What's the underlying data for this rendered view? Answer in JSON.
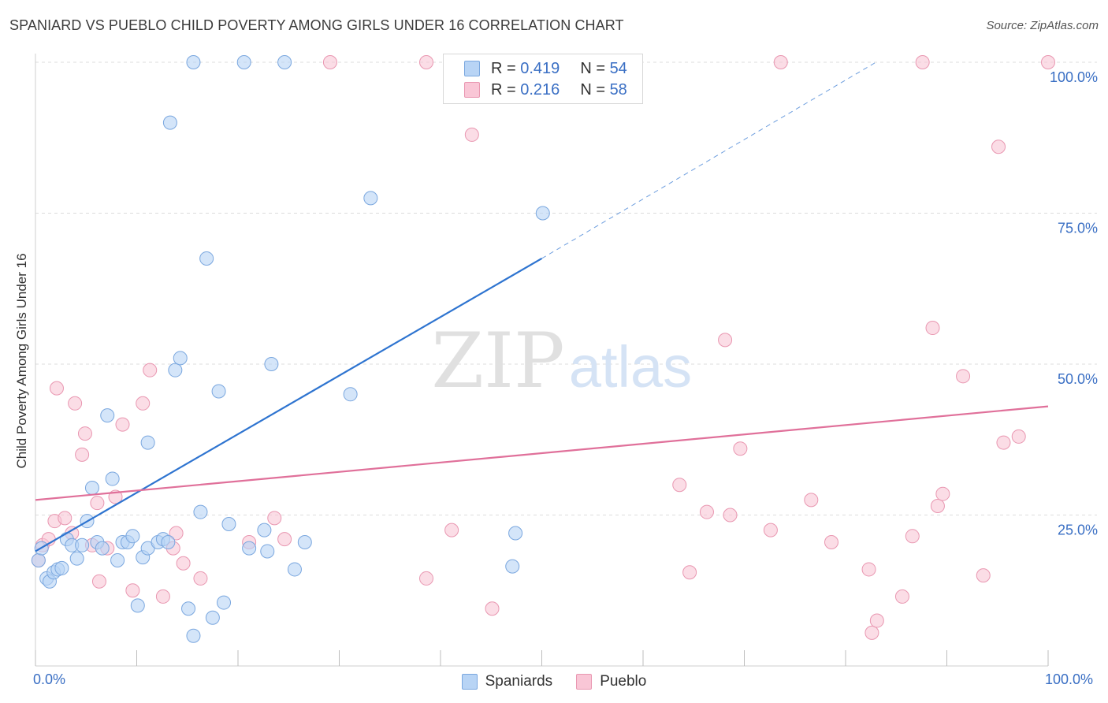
{
  "header": {
    "title": "SPANIARD VS PUEBLO CHILD POVERTY AMONG GIRLS UNDER 16 CORRELATION CHART",
    "source": "Source: ZipAtlas.com"
  },
  "watermark": {
    "zip": "ZIP",
    "atlas": "atlas"
  },
  "legend_top": [
    {
      "r_label": "R =",
      "r_value": "0.419",
      "n_label": "N =",
      "n_value": "54"
    },
    {
      "r_label": "R =",
      "r_value": "0.216",
      "n_label": "N =",
      "n_value": "58"
    }
  ],
  "legend_bottom": [
    {
      "label": "Spaniards"
    },
    {
      "label": "Pueblo"
    }
  ],
  "colors": {
    "spaniards_fill": "#b8d4f5",
    "spaniards_stroke": "#7aa7df",
    "spaniards_line": "#2e74d0",
    "pueblo_fill": "#f9c6d6",
    "pueblo_stroke": "#e997b1",
    "pueblo_line": "#e0709a",
    "tick_label": "#3a6fc4",
    "grid": "#dcdcdc"
  },
  "chart_data": {
    "type": "scatter",
    "title": "SPANIARD VS PUEBLO CHILD POVERTY AMONG GIRLS UNDER 16 CORRELATION CHART",
    "xlabel": "",
    "ylabel": "Child Poverty Among Girls Under 16",
    "xlim": [
      0,
      100
    ],
    "ylim": [
      0,
      100
    ],
    "x_tick_labels": [
      "0.0%",
      "100.0%"
    ],
    "y_ticks": [
      25,
      50,
      75,
      100
    ],
    "y_tick_labels": [
      "25.0%",
      "50.0%",
      "75.0%",
      "100.0%"
    ],
    "grid": "horizontal dashed",
    "legend_position": "top-center",
    "series": [
      {
        "name": "Spaniards",
        "r": 0.419,
        "n": 54,
        "trend": {
          "x": [
            0,
            50
          ],
          "y": [
            19,
            67.5
          ],
          "dashed_extension_to": [
            83,
            100
          ]
        },
        "points": [
          [
            0.3,
            17.5
          ],
          [
            0.6,
            19.5
          ],
          [
            1.1,
            14.5
          ],
          [
            1.4,
            14
          ],
          [
            1.8,
            15.5
          ],
          [
            2.2,
            16
          ],
          [
            2.6,
            16.2
          ],
          [
            3.1,
            21
          ],
          [
            3.6,
            20
          ],
          [
            4.1,
            17.8
          ],
          [
            4.6,
            20
          ],
          [
            5.1,
            24
          ],
          [
            5.6,
            29.5
          ],
          [
            6.1,
            20.5
          ],
          [
            6.6,
            19.5
          ],
          [
            7.1,
            41.5
          ],
          [
            7.6,
            31
          ],
          [
            8.1,
            17.5
          ],
          [
            8.6,
            20.5
          ],
          [
            9.1,
            20.5
          ],
          [
            9.6,
            21.5
          ],
          [
            10.1,
            10
          ],
          [
            10.6,
            18
          ],
          [
            11.1,
            19.5
          ],
          [
            11.1,
            37
          ],
          [
            12.1,
            20.5
          ],
          [
            12.6,
            21
          ],
          [
            13.1,
            20.5
          ],
          [
            13.3,
            90
          ],
          [
            13.8,
            49
          ],
          [
            14.3,
            51
          ],
          [
            15.1,
            9.5
          ],
          [
            15.6,
            5
          ],
          [
            16.3,
            25.5
          ],
          [
            16.9,
            67.5
          ],
          [
            17.5,
            8
          ],
          [
            18.1,
            45.5
          ],
          [
            18.6,
            10.5
          ],
          [
            19.1,
            23.5
          ],
          [
            20.6,
            100
          ],
          [
            21.1,
            19.5
          ],
          [
            22.6,
            22.5
          ],
          [
            22.9,
            19
          ],
          [
            23.3,
            50
          ],
          [
            25.6,
            16
          ],
          [
            26.6,
            20.5
          ],
          [
            31.1,
            45
          ],
          [
            33.1,
            77.5
          ],
          [
            41.1,
            100
          ],
          [
            47.1,
            16.5
          ],
          [
            47.4,
            22
          ],
          [
            50.1,
            75
          ],
          [
            15.6,
            100
          ],
          [
            24.6,
            100
          ]
        ]
      },
      {
        "name": "Pueblo",
        "r": 0.216,
        "n": 58,
        "trend": {
          "x": [
            0,
            100
          ],
          "y": [
            27.5,
            43
          ]
        },
        "points": [
          [
            0.3,
            17.5
          ],
          [
            0.7,
            20
          ],
          [
            1.3,
            21
          ],
          [
            1.9,
            24
          ],
          [
            2.1,
            46
          ],
          [
            2.9,
            24.5
          ],
          [
            3.6,
            22
          ],
          [
            3.9,
            43.5
          ],
          [
            4.6,
            35
          ],
          [
            4.9,
            38.5
          ],
          [
            5.6,
            20
          ],
          [
            6.1,
            27
          ],
          [
            6.3,
            14
          ],
          [
            7.1,
            19.5
          ],
          [
            7.9,
            28
          ],
          [
            8.6,
            40
          ],
          [
            9.6,
            12.5
          ],
          [
            10.6,
            43.5
          ],
          [
            11.3,
            49
          ],
          [
            12.6,
            11.5
          ],
          [
            13.6,
            19.5
          ],
          [
            13.9,
            22
          ],
          [
            14.6,
            17
          ],
          [
            16.3,
            14.5
          ],
          [
            21.1,
            20.5
          ],
          [
            23.6,
            24.5
          ],
          [
            24.6,
            21
          ],
          [
            29.1,
            100
          ],
          [
            38.6,
            100
          ],
          [
            38.6,
            14.5
          ],
          [
            41.1,
            22.5
          ],
          [
            43.1,
            88
          ],
          [
            45.1,
            9.5
          ],
          [
            63.6,
            30
          ],
          [
            64.6,
            15.5
          ],
          [
            66.3,
            25.5
          ],
          [
            68.1,
            54
          ],
          [
            68.6,
            25
          ],
          [
            69.6,
            36
          ],
          [
            72.6,
            22.5
          ],
          [
            73.6,
            100
          ],
          [
            76.6,
            27.5
          ],
          [
            78.6,
            20.5
          ],
          [
            82.3,
            16
          ],
          [
            82.6,
            5.5
          ],
          [
            83.1,
            7.5
          ],
          [
            85.6,
            11.5
          ],
          [
            86.6,
            21.5
          ],
          [
            87.6,
            100
          ],
          [
            88.6,
            56
          ],
          [
            89.1,
            26.5
          ],
          [
            89.6,
            28.5
          ],
          [
            91.6,
            48
          ],
          [
            93.6,
            15
          ],
          [
            95.1,
            86
          ],
          [
            95.6,
            37
          ],
          [
            97.1,
            38
          ],
          [
            100,
            100
          ]
        ]
      }
    ]
  }
}
